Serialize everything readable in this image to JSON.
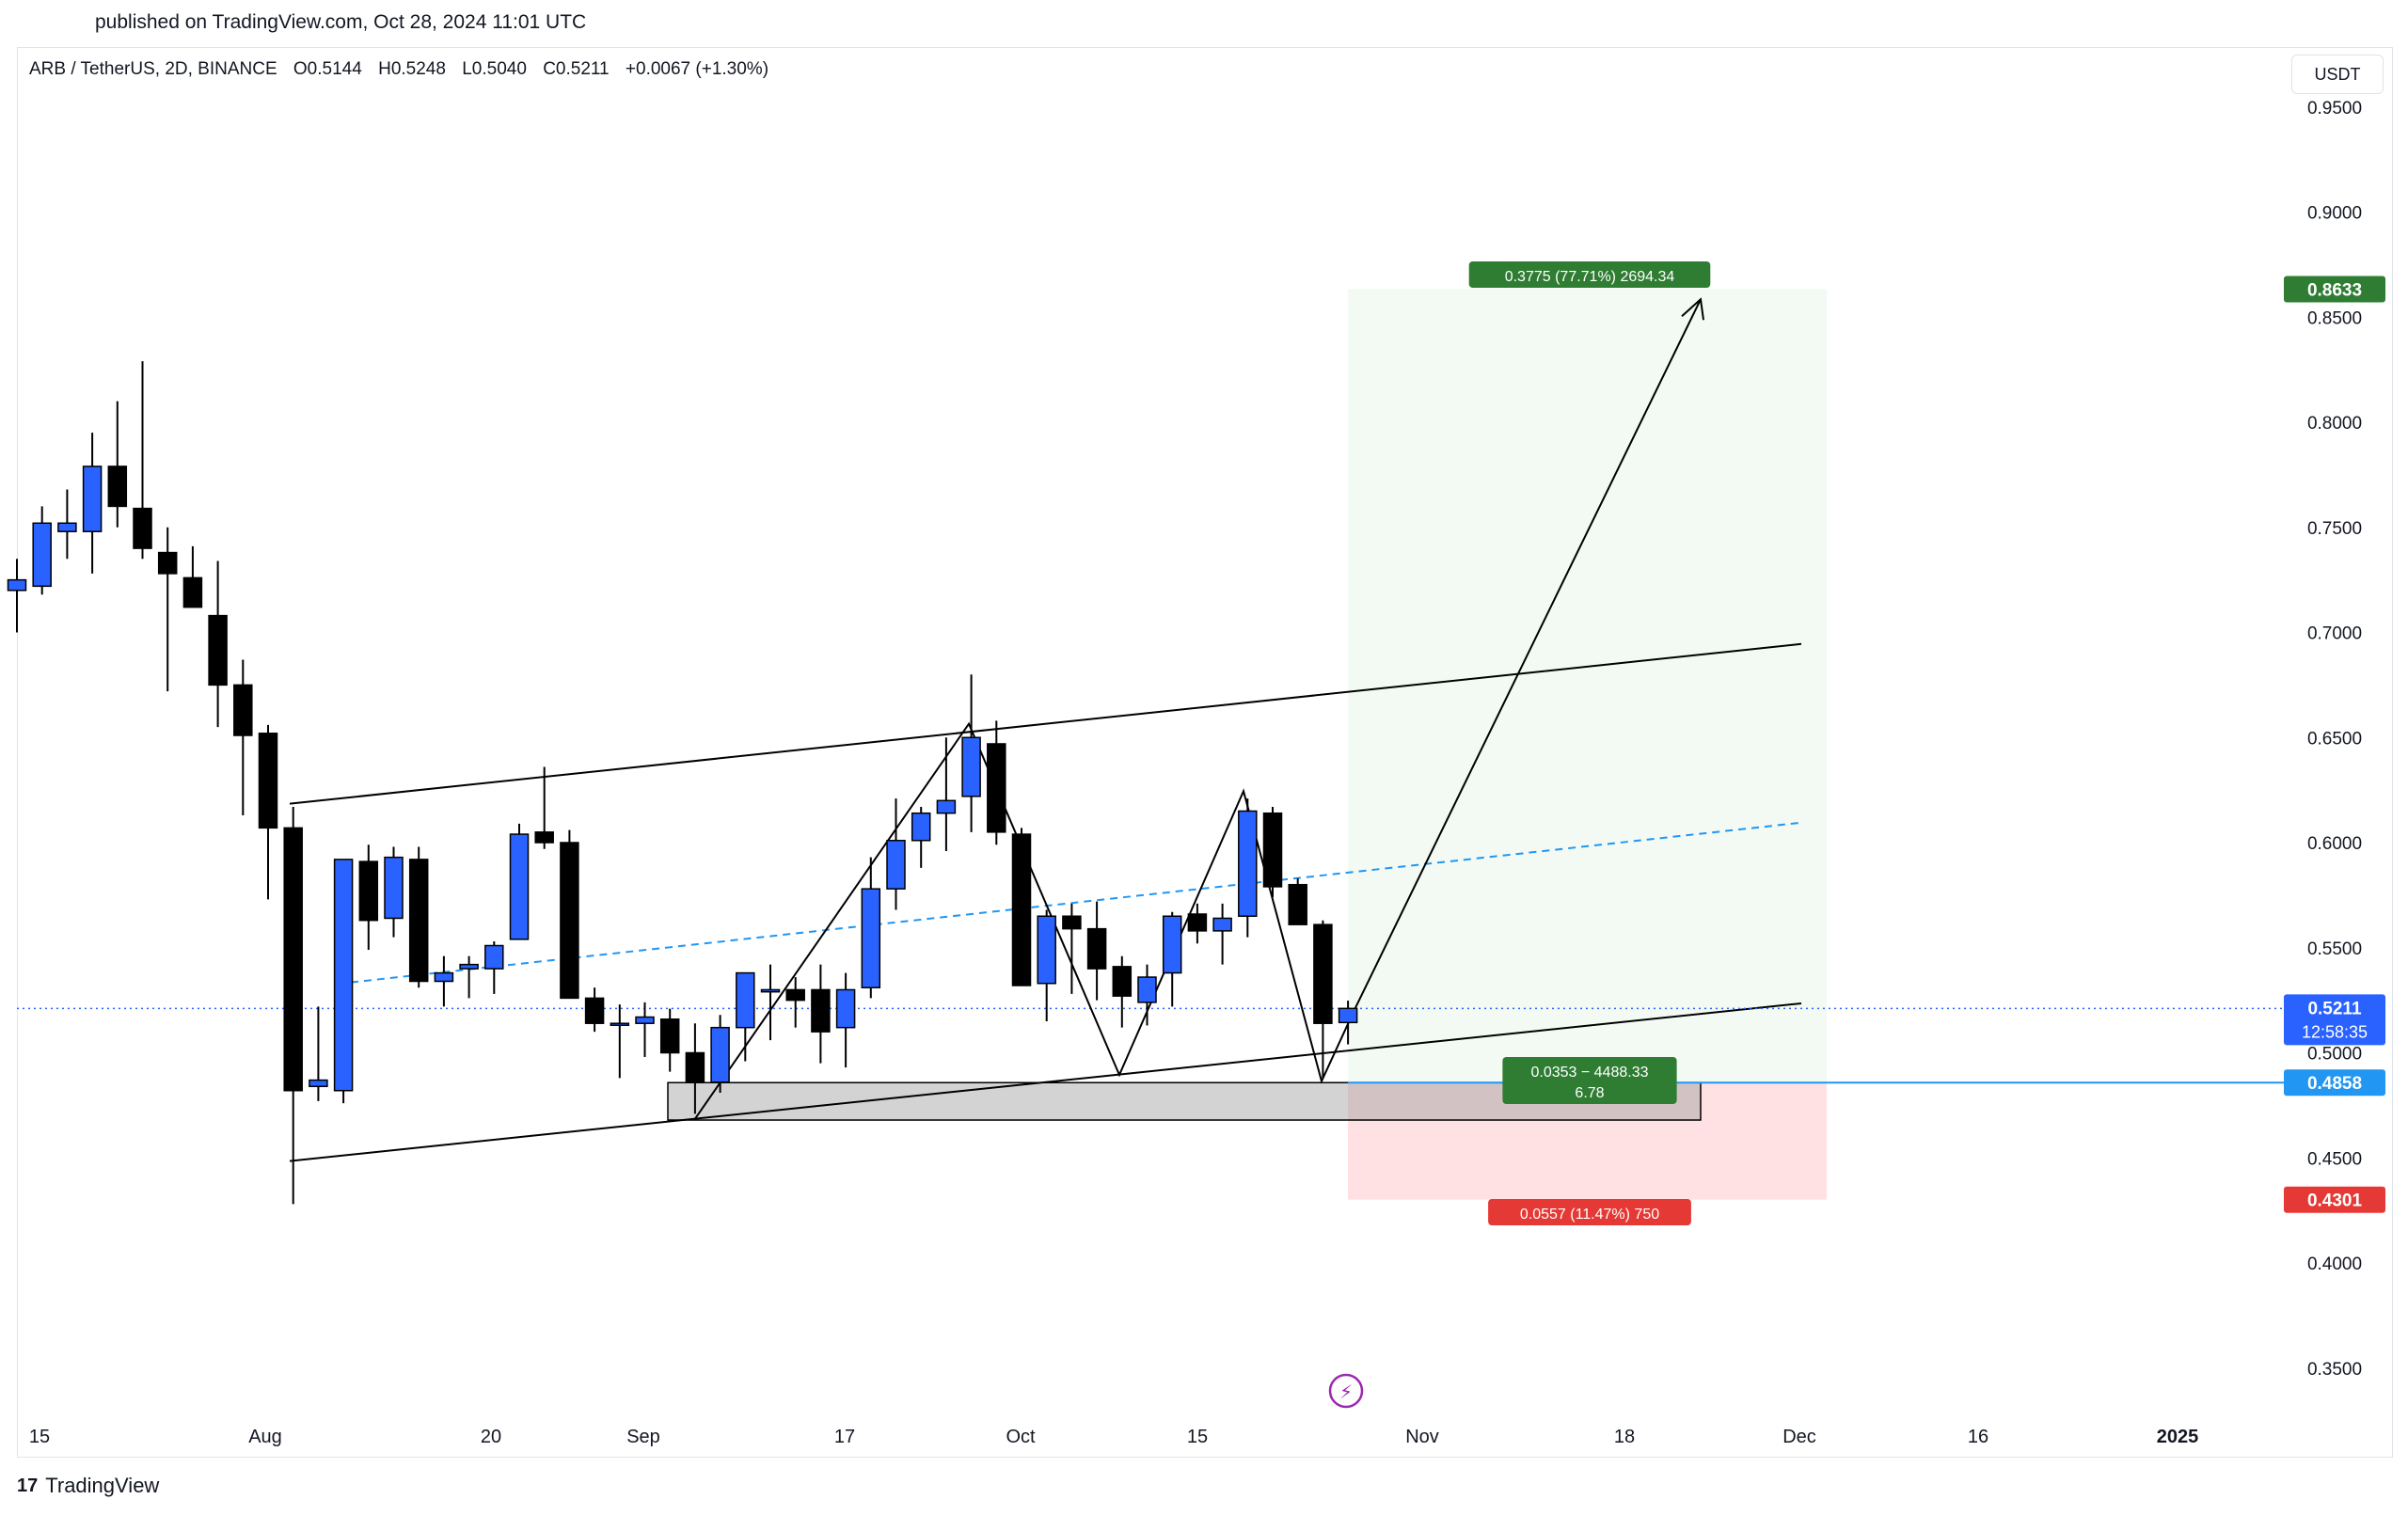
{
  "header": {
    "published": "published on TradingView.com, Oct 28, 2024 11:01 UTC"
  },
  "legend": {
    "symbol": "ARB / TetherUS, 2D, BINANCE",
    "open": "O0.5144",
    "high": "H0.5248",
    "low": "L0.5040",
    "close": "C0.5211",
    "change": "+0.0067 (+1.30%)"
  },
  "currency": "USDT",
  "footer": {
    "logo": "17",
    "brand": "TradingView"
  },
  "colors": {
    "up": "#2962ff",
    "down": "#000000",
    "profit": "#2e7d32",
    "loss": "#e53935",
    "price": "#2962ff"
  },
  "chart_data": {
    "type": "candlestick",
    "x_ticks": [
      "15",
      "Aug",
      "20",
      "Sep",
      "17",
      "Oct",
      "15",
      "Nov",
      "18",
      "Dec",
      "16",
      "2025"
    ],
    "y_ticks": [
      "0.9500",
      "0.9000",
      "0.8500",
      "0.8000",
      "0.7500",
      "0.7000",
      "0.6500",
      "0.6000",
      "0.5500",
      "0.5000",
      "0.4500",
      "0.4000",
      "0.3500"
    ],
    "ylim": [
      0.3,
      0.98
    ],
    "price_labels": [
      {
        "value": "0.8633",
        "kind": "target"
      },
      {
        "value": "0.5211",
        "kind": "current",
        "sub": "12:58:35"
      },
      {
        "value": "0.4858",
        "kind": "entry"
      },
      {
        "value": "0.4301",
        "kind": "stop"
      }
    ],
    "candles": [
      {
        "o": 0.72,
        "h": 0.735,
        "l": 0.7,
        "c": 0.725
      },
      {
        "o": 0.722,
        "h": 0.76,
        "l": 0.718,
        "c": 0.752
      },
      {
        "o": 0.748,
        "h": 0.768,
        "l": 0.735,
        "c": 0.752
      },
      {
        "o": 0.748,
        "h": 0.795,
        "l": 0.728,
        "c": 0.779
      },
      {
        "o": 0.779,
        "h": 0.81,
        "l": 0.75,
        "c": 0.76
      },
      {
        "o": 0.759,
        "h": 0.829,
        "l": 0.735,
        "c": 0.74
      },
      {
        "o": 0.738,
        "h": 0.75,
        "l": 0.672,
        "c": 0.728
      },
      {
        "o": 0.726,
        "h": 0.741,
        "l": 0.713,
        "c": 0.712
      },
      {
        "o": 0.708,
        "h": 0.734,
        "l": 0.655,
        "c": 0.675
      },
      {
        "o": 0.675,
        "h": 0.687,
        "l": 0.613,
        "c": 0.651
      },
      {
        "o": 0.652,
        "h": 0.656,
        "l": 0.573,
        "c": 0.607
      },
      {
        "o": 0.607,
        "h": 0.617,
        "l": 0.428,
        "c": 0.482
      },
      {
        "o": 0.484,
        "h": 0.522,
        "l": 0.477,
        "c": 0.487
      },
      {
        "o": 0.482,
        "h": 0.591,
        "l": 0.476,
        "c": 0.592
      },
      {
        "o": 0.591,
        "h": 0.599,
        "l": 0.549,
        "c": 0.563
      },
      {
        "o": 0.564,
        "h": 0.598,
        "l": 0.555,
        "c": 0.593
      },
      {
        "o": 0.592,
        "h": 0.598,
        "l": 0.531,
        "c": 0.534
      },
      {
        "o": 0.534,
        "h": 0.546,
        "l": 0.522,
        "c": 0.538
      },
      {
        "o": 0.54,
        "h": 0.546,
        "l": 0.526,
        "c": 0.542
      },
      {
        "o": 0.54,
        "h": 0.553,
        "l": 0.528,
        "c": 0.551
      },
      {
        "o": 0.554,
        "h": 0.609,
        "l": 0.554,
        "c": 0.604
      },
      {
        "o": 0.605,
        "h": 0.636,
        "l": 0.597,
        "c": 0.6
      },
      {
        "o": 0.6,
        "h": 0.606,
        "l": 0.526,
        "c": 0.526
      },
      {
        "o": 0.526,
        "h": 0.531,
        "l": 0.51,
        "c": 0.514
      },
      {
        "o": 0.514,
        "h": 0.523,
        "l": 0.488,
        "c": 0.514
      },
      {
        "o": 0.514,
        "h": 0.524,
        "l": 0.498,
        "c": 0.517
      },
      {
        "o": 0.516,
        "h": 0.521,
        "l": 0.491,
        "c": 0.5
      },
      {
        "o": 0.5,
        "h": 0.514,
        "l": 0.471,
        "c": 0.486
      },
      {
        "o": 0.486,
        "h": 0.518,
        "l": 0.481,
        "c": 0.512
      },
      {
        "o": 0.512,
        "h": 0.538,
        "l": 0.496,
        "c": 0.538
      },
      {
        "o": 0.529,
        "h": 0.542,
        "l": 0.506,
        "c": 0.53
      },
      {
        "o": 0.53,
        "h": 0.536,
        "l": 0.512,
        "c": 0.525
      },
      {
        "o": 0.53,
        "h": 0.542,
        "l": 0.495,
        "c": 0.51
      },
      {
        "o": 0.512,
        "h": 0.538,
        "l": 0.493,
        "c": 0.53
      },
      {
        "o": 0.531,
        "h": 0.593,
        "l": 0.526,
        "c": 0.578
      },
      {
        "o": 0.578,
        "h": 0.621,
        "l": 0.568,
        "c": 0.601
      },
      {
        "o": 0.601,
        "h": 0.617,
        "l": 0.588,
        "c": 0.614
      },
      {
        "o": 0.614,
        "h": 0.65,
        "l": 0.596,
        "c": 0.62
      },
      {
        "o": 0.622,
        "h": 0.68,
        "l": 0.605,
        "c": 0.65
      },
      {
        "o": 0.647,
        "h": 0.658,
        "l": 0.599,
        "c": 0.605
      },
      {
        "o": 0.604,
        "h": 0.607,
        "l": 0.537,
        "c": 0.532
      },
      {
        "o": 0.533,
        "h": 0.568,
        "l": 0.515,
        "c": 0.565
      },
      {
        "o": 0.565,
        "h": 0.571,
        "l": 0.528,
        "c": 0.559
      },
      {
        "o": 0.559,
        "h": 0.572,
        "l": 0.525,
        "c": 0.54
      },
      {
        "o": 0.541,
        "h": 0.546,
        "l": 0.512,
        "c": 0.527
      },
      {
        "o": 0.524,
        "h": 0.542,
        "l": 0.513,
        "c": 0.536
      },
      {
        "o": 0.538,
        "h": 0.567,
        "l": 0.522,
        "c": 0.565
      },
      {
        "o": 0.566,
        "h": 0.571,
        "l": 0.552,
        "c": 0.558
      },
      {
        "o": 0.558,
        "h": 0.571,
        "l": 0.542,
        "c": 0.564
      },
      {
        "o": 0.565,
        "h": 0.621,
        "l": 0.555,
        "c": 0.615
      },
      {
        "o": 0.614,
        "h": 0.617,
        "l": 0.574,
        "c": 0.579
      },
      {
        "o": 0.58,
        "h": 0.583,
        "l": 0.562,
        "c": 0.561
      },
      {
        "o": 0.561,
        "h": 0.563,
        "l": 0.488,
        "c": 0.514
      },
      {
        "o": 0.5144,
        "h": 0.5248,
        "l": 0.504,
        "c": 0.5211
      }
    ],
    "annotations": {
      "target_label": "0.3775 (77.71%) 2694.34",
      "entry_label_1": "0.0353 − 4488.33",
      "entry_label_2": "6.78",
      "stop_label": "0.0557 (11.47%) 750"
    },
    "grid": false,
    "legend_position": "top-left"
  }
}
